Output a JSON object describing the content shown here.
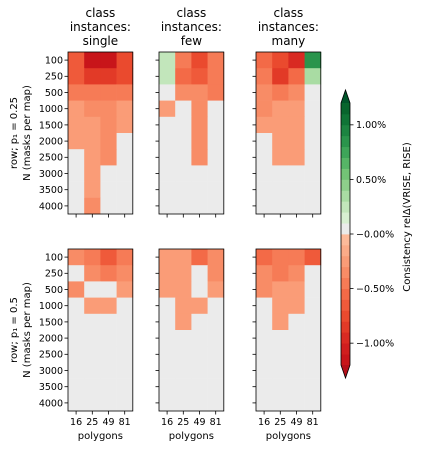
{
  "chart_data": {
    "type": "heatmap",
    "columns": [
      {
        "title": [
          "class",
          "instances:",
          "single"
        ]
      },
      {
        "title": [
          "class",
          "instances:",
          "few"
        ]
      },
      {
        "title": [
          "class",
          "instances:",
          "many"
        ]
      }
    ],
    "rows": [
      {
        "ylabel_line1": "row; p₁ = 0.25"
      },
      {
        "ylabel_line1": "row; p₁ = 0.5"
      }
    ],
    "ylabel_line2": "N (masks per map)",
    "xlabel": "polygons",
    "x_categories": [
      "16",
      "25",
      "49",
      "81"
    ],
    "y_categories": [
      "100",
      "250",
      "500",
      "1000",
      "1500",
      "2000",
      "2500",
      "3000",
      "3500",
      "4000"
    ],
    "missing_value_color": "#ebebeb",
    "panels": [
      {
        "row": 0,
        "col": 0,
        "values": [
          [
            -0.0065,
            -0.0118,
            -0.0118,
            -0.0075
          ],
          [
            -0.0065,
            -0.0085,
            -0.0085,
            -0.0075
          ],
          [
            -0.0045,
            -0.0045,
            -0.0045,
            -0.0045
          ],
          [
            -0.0025,
            -0.0035,
            -0.0035,
            -0.0025
          ],
          [
            -0.0025,
            -0.0025,
            -0.0035,
            -0.0025
          ],
          [
            -0.0025,
            -0.0025,
            -0.0035,
            null
          ],
          [
            null,
            -0.0025,
            -0.0035,
            null
          ],
          [
            null,
            -0.0025,
            null,
            null
          ],
          [
            null,
            -0.0025,
            null,
            null
          ],
          [
            null,
            -0.0035,
            null,
            null
          ]
        ]
      },
      {
        "row": 0,
        "col": 1,
        "values": [
          [
            0.0025,
            -0.0045,
            -0.0075,
            -0.0045
          ],
          [
            0.0025,
            -0.0055,
            -0.0065,
            -0.0045
          ],
          [
            null,
            -0.0035,
            -0.0035,
            -0.0045
          ],
          [
            -0.0025,
            null,
            -0.0035,
            null
          ],
          [
            null,
            null,
            -0.0035,
            null
          ],
          [
            null,
            null,
            -0.0035,
            null
          ],
          [
            null,
            null,
            -0.0035,
            null
          ],
          [
            null,
            null,
            null,
            null
          ],
          [
            null,
            null,
            null,
            null
          ],
          [
            null,
            null,
            null,
            null
          ]
        ]
      },
      {
        "row": 0,
        "col": 2,
        "values": [
          [
            -0.0055,
            -0.0075,
            -0.0095,
            0.0085
          ],
          [
            -0.0045,
            -0.0085,
            -0.0055,
            0.0035
          ],
          [
            -0.0035,
            -0.0045,
            -0.0035,
            null
          ],
          [
            -0.0035,
            -0.0025,
            -0.0025,
            null
          ],
          [
            -0.0025,
            -0.0025,
            -0.0025,
            null
          ],
          [
            null,
            -0.0025,
            -0.0025,
            null
          ],
          [
            null,
            -0.0025,
            -0.0025,
            null
          ],
          [
            null,
            null,
            null,
            null
          ],
          [
            null,
            null,
            null,
            null
          ],
          [
            null,
            null,
            null,
            null
          ]
        ]
      },
      {
        "row": 1,
        "col": 0,
        "values": [
          [
            -0.0035,
            -0.0045,
            -0.0065,
            -0.0045
          ],
          [
            null,
            -0.0035,
            -0.0045,
            -0.0035
          ],
          [
            -0.0035,
            null,
            null,
            -0.0025
          ],
          [
            null,
            -0.0025,
            -0.0025,
            null
          ],
          [
            null,
            null,
            null,
            null
          ],
          [
            null,
            null,
            null,
            null
          ],
          [
            null,
            null,
            null,
            null
          ],
          [
            null,
            null,
            null,
            null
          ],
          [
            null,
            null,
            null,
            null
          ],
          [
            null,
            null,
            null,
            null
          ]
        ]
      },
      {
        "row": 1,
        "col": 1,
        "values": [
          [
            -0.0025,
            -0.0025,
            -0.0055,
            -0.0035
          ],
          [
            -0.0025,
            -0.0025,
            null,
            -0.0035
          ],
          [
            -0.0025,
            -0.0025,
            null,
            -0.0025
          ],
          [
            null,
            -0.0025,
            -0.0025,
            null
          ],
          [
            null,
            -0.0025,
            null,
            null
          ],
          [
            null,
            null,
            null,
            null
          ],
          [
            null,
            null,
            null,
            null
          ],
          [
            null,
            null,
            null,
            null
          ],
          [
            null,
            null,
            null,
            null
          ],
          [
            null,
            null,
            null,
            null
          ]
        ]
      },
      {
        "row": 1,
        "col": 2,
        "values": [
          [
            -0.0055,
            -0.0045,
            -0.0045,
            -0.0065
          ],
          [
            -0.0035,
            -0.0045,
            -0.0035,
            null
          ],
          [
            -0.0035,
            -0.0025,
            -0.0025,
            null
          ],
          [
            null,
            -0.0025,
            -0.0025,
            null
          ],
          [
            null,
            -0.0025,
            null,
            null
          ],
          [
            null,
            null,
            null,
            null
          ],
          [
            null,
            null,
            null,
            null
          ],
          [
            null,
            null,
            null,
            null
          ],
          [
            null,
            null,
            null,
            null
          ],
          [
            null,
            null,
            null,
            null
          ]
        ]
      }
    ],
    "colorbar": {
      "label": "Consistency relΔ(VRISE, RISE)",
      "range": [
        -0.012,
        0.012
      ],
      "ticks": [
        -0.01,
        -0.005,
        0.0,
        0.005,
        0.01
      ],
      "tick_labels": [
        "−1.00%",
        "−0.50%",
        "−0.00%",
        "0.50%",
        "1.00%"
      ],
      "extend": "both",
      "levels": [
        -0.012,
        -0.011,
        -0.01,
        -0.009,
        -0.008,
        -0.007,
        -0.006,
        -0.005,
        -0.004,
        -0.003,
        -0.002,
        -0.001,
        0.0,
        0.001,
        0.002,
        0.003,
        0.004,
        0.005,
        0.006,
        0.007,
        0.008,
        0.009,
        0.01,
        0.011,
        0.012
      ],
      "colors": [
        "#c8151a",
        "#d01e1e",
        "#d92a22",
        "#e23a27",
        "#ea4a2e",
        "#ef5a3a",
        "#f36a47",
        "#f67b56",
        "#f88c66",
        "#fa9c77",
        "#fcab88",
        "#fdba9a",
        "#ebebeb",
        "#d7efd1",
        "#c2e6bb",
        "#a9dca3",
        "#8ecf8b",
        "#73c476",
        "#56b566",
        "#3ea559",
        "#2a944c",
        "#1c8441",
        "#0f7436",
        "#08652d"
      ],
      "under_color": "#b5101a",
      "over_color": "#00552a"
    }
  }
}
